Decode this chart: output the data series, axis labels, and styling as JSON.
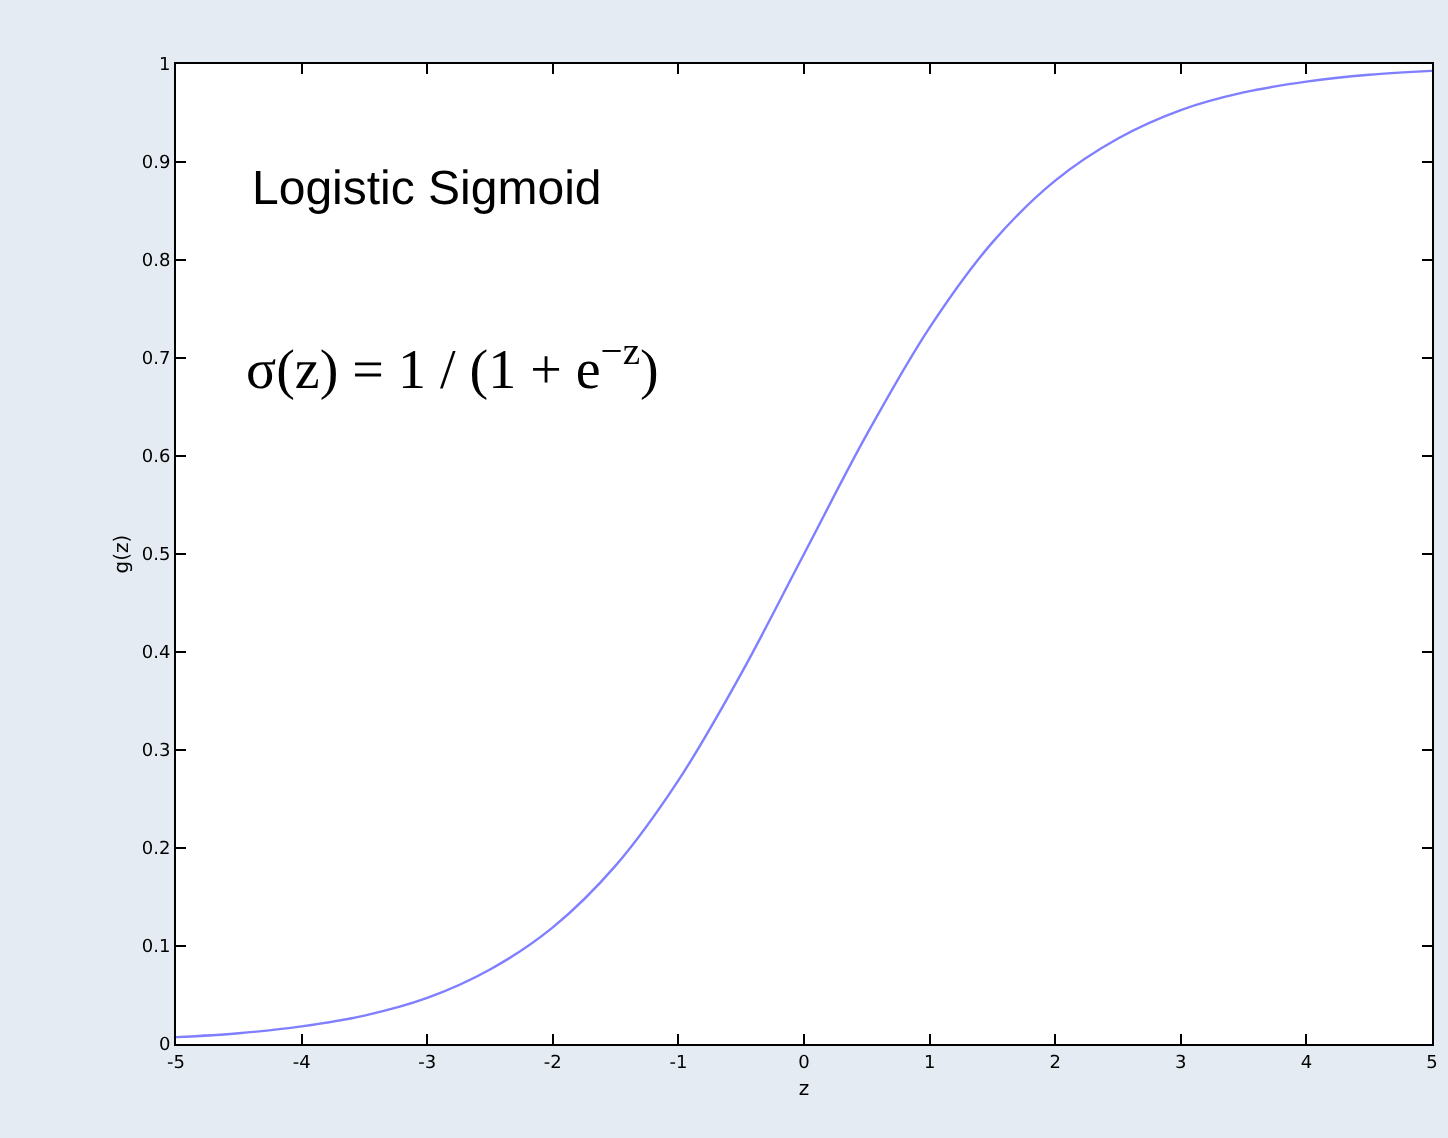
{
  "chart_data": {
    "type": "line",
    "xlabel": "z",
    "ylabel": "g(z)",
    "annotations": [
      "Logistic Sigmoid",
      "σ(z) = 1 / (1 + e$^{−z}$)"
    ],
    "x": [
      -5,
      -4.5,
      -4,
      -3.5,
      -3,
      -2.5,
      -2,
      -1.5,
      -1,
      -0.5,
      0,
      0.5,
      1,
      1.5,
      2,
      2.5,
      3,
      3.5,
      4,
      4.5,
      5
    ],
    "series": [
      {
        "color": "#7f7fff",
        "values": [
          0.007,
          0.011,
          0.018,
          0.029,
          0.047,
          0.076,
          0.119,
          0.182,
          0.269,
          0.378,
          0.5,
          0.622,
          0.731,
          0.818,
          0.881,
          0.924,
          0.953,
          0.971,
          0.982,
          0.989,
          0.993
        ]
      }
    ],
    "xlim": [
      -5,
      5
    ],
    "xticks": [
      -5,
      -4,
      -3,
      -2,
      -1,
      0,
      1,
      2,
      3,
      4,
      5
    ],
    "ylim": [
      0,
      1
    ],
    "yticks": [
      0,
      0.1,
      0.2,
      0.3,
      0.4,
      0.5,
      0.6,
      0.7,
      0.8,
      0.9,
      1
    ],
    "grid": false,
    "marker": "none",
    "line_style": "solid"
  }
}
